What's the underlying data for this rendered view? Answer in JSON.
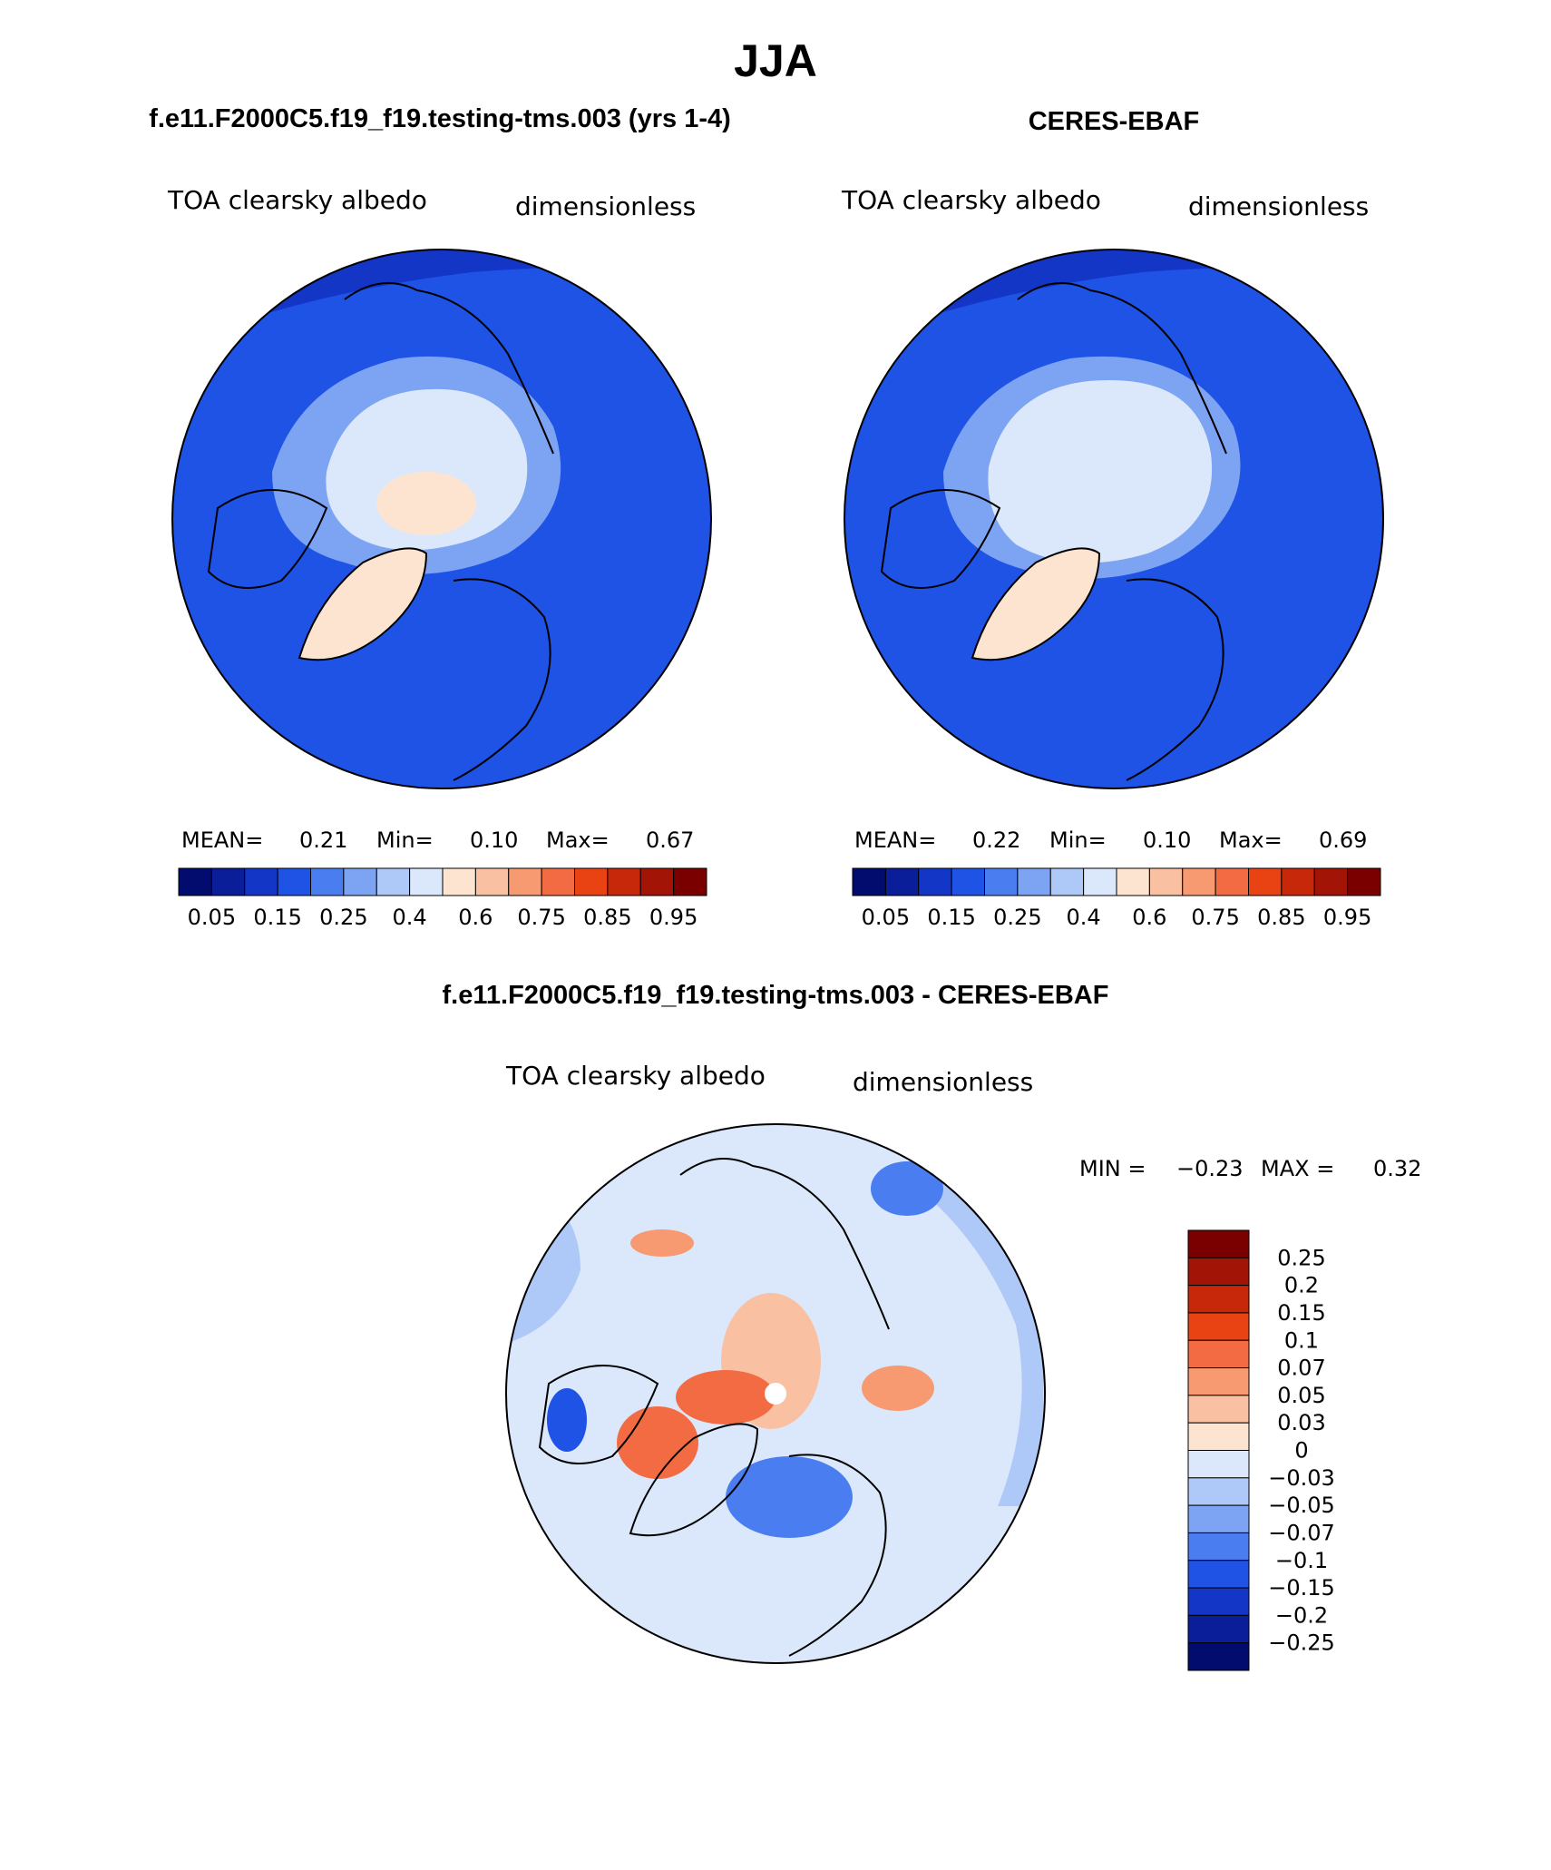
{
  "page_title": "JJA",
  "chart_data": [
    {
      "type": "heatmap",
      "projection": "polar-stereographic",
      "title": "f.e11.F2000C5.f19_f19.testing-tms.003 (yrs 1-4)",
      "variable": "TOA clearsky albedo",
      "units": "dimensionless",
      "stats": {
        "mean_label": "MEAN=",
        "mean": "0.21",
        "min_label": "Min=",
        "min": "0.10",
        "max_label": "Max=",
        "max": "0.67"
      },
      "tick_labels": [
        "0.05",
        "0.15",
        "0.25",
        "0.4",
        "0.6",
        "0.75",
        "0.85",
        "0.95"
      ],
      "polar_value": 0.6,
      "greenland_value": 0.6
    },
    {
      "type": "heatmap",
      "projection": "polar-stereographic",
      "title": "CERES-EBAF",
      "variable": "TOA clearsky albedo",
      "units": "dimensionless",
      "stats": {
        "mean_label": "MEAN=",
        "mean": "0.22",
        "min_label": "Min=",
        "min": "0.10",
        "max_label": "Max=",
        "max": "0.69"
      },
      "tick_labels": [
        "0.05",
        "0.15",
        "0.25",
        "0.4",
        "0.6",
        "0.75",
        "0.85",
        "0.95"
      ],
      "polar_value": 0.4,
      "greenland_value": 0.6
    },
    {
      "type": "heatmap",
      "projection": "polar-stereographic",
      "title": "f.e11.F2000C5.f19_f19.testing-tms.003 - CERES-EBAF",
      "variable": "TOA clearsky albedo",
      "units": "dimensionless",
      "minmax": {
        "min_label": "MIN =",
        "min": "−0.23",
        "max_label": "MAX =",
        "max": "0.32"
      },
      "tick_labels": [
        "0.25",
        "0.2",
        "0.15",
        "0.1",
        "0.07",
        "0.05",
        "0.03",
        "0",
        "−0.03",
        "−0.05",
        "−0.07",
        "−0.1",
        "−0.15",
        "−0.2",
        "−0.25"
      ]
    }
  ],
  "colors": {
    "seq": [
      "#020b6e",
      "#0a1e9a",
      "#1336c6",
      "#1e53e6",
      "#4a7ef0",
      "#7da4f3",
      "#aec8f7",
      "#dbe8fb",
      "#fde4d1",
      "#f9c0a2",
      "#f79a72",
      "#f36b42",
      "#e94314",
      "#c8280a",
      "#a21406",
      "#7a0000"
    ],
    "diff": [
      "#020b6e",
      "#0a1e9a",
      "#1336c6",
      "#1e53e6",
      "#4a7ef0",
      "#7da4f3",
      "#aec8f7",
      "#dbe8fb",
      "#fde4d1",
      "#f9c0a2",
      "#f79a72",
      "#f36b42",
      "#e94314",
      "#c8280a",
      "#a21406",
      "#7a0000"
    ]
  }
}
